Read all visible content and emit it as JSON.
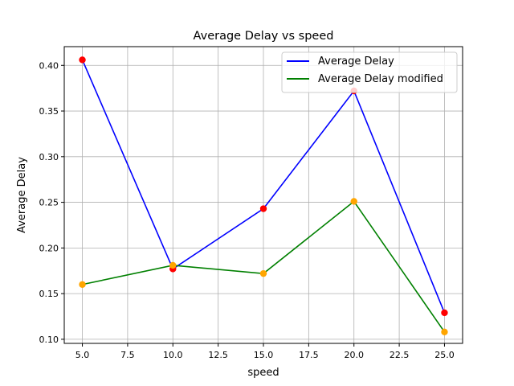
{
  "chart_data": {
    "type": "line",
    "title": "Average Delay vs speed",
    "xlabel": "speed",
    "ylabel": "Average Delay",
    "x": [
      5,
      10,
      15,
      20,
      25
    ],
    "xlim": [
      4,
      26
    ],
    "ylim": [
      0.0955,
      0.4205
    ],
    "xticks": [
      5,
      7.5,
      10,
      12.5,
      15,
      17.5,
      20,
      22.5,
      25
    ],
    "xtick_labels": [
      "5.0",
      "7.5",
      "10.0",
      "12.5",
      "15.0",
      "17.5",
      "20.0",
      "22.5",
      "25.0"
    ],
    "yticks": [
      0.1,
      0.15,
      0.2,
      0.25,
      0.3,
      0.35,
      0.4
    ],
    "ytick_labels": [
      "0.10",
      "0.15",
      "0.20",
      "0.25",
      "0.30",
      "0.35",
      "0.40"
    ],
    "grid": true,
    "legend_position": "top-right",
    "series": [
      {
        "name": "Average Delay",
        "values": [
          0.406,
          0.177,
          0.243,
          0.372,
          0.129
        ],
        "color": "#0000ff",
        "marker_color": "#ff0000"
      },
      {
        "name": "Average Delay modified",
        "values": [
          0.16,
          0.181,
          0.172,
          0.251,
          0.108
        ],
        "color": "#008000",
        "marker_color": "#ffa500"
      }
    ]
  }
}
